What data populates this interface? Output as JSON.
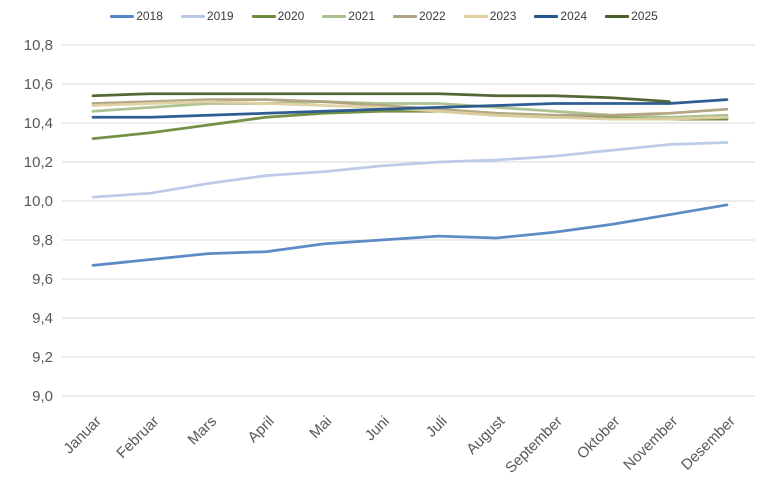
{
  "chart_data": {
    "type": "line",
    "title": "",
    "xlabel": "",
    "ylabel": "",
    "categories": [
      "Januar",
      "Februar",
      "Mars",
      "April",
      "Mai",
      "Juni",
      "Juli",
      "August",
      "September",
      "Oktober",
      "November",
      "Desember"
    ],
    "ylim": [
      9.0,
      10.8
    ],
    "ytick_step": 0.2,
    "ytick_labels": [
      "10,8",
      "10,6",
      "10,4",
      "10,2",
      "10,0",
      "9,8",
      "9,6",
      "9,4",
      "9,2",
      "9,0"
    ],
    "decimal_separator": ",",
    "grid": true,
    "legend_position": "top",
    "axis_text_color": "#595959",
    "gridline_color": "#d9d9d9",
    "background_color": "#ffffff",
    "series": [
      {
        "name": "2018",
        "color": "#5585C2",
        "values": [
          9.67,
          9.7,
          9.73,
          9.74,
          9.78,
          9.8,
          9.82,
          9.81,
          9.84,
          9.88,
          9.93,
          9.98
        ]
      },
      {
        "name": "2019",
        "color": "#B9C7E8",
        "values": [
          10.02,
          10.04,
          10.09,
          10.13,
          10.15,
          10.18,
          10.2,
          10.21,
          10.23,
          10.26,
          10.29,
          10.3
        ]
      },
      {
        "name": "2020",
        "color": "#6D8B3C",
        "values": [
          10.32,
          10.35,
          10.39,
          10.43,
          10.45,
          10.46,
          10.46,
          10.44,
          10.43,
          10.43,
          10.42,
          10.42
        ]
      },
      {
        "name": "2021",
        "color": "#A9C08C",
        "values": [
          10.46,
          10.48,
          10.5,
          10.5,
          10.51,
          10.5,
          10.5,
          10.48,
          10.46,
          10.44,
          10.43,
          10.44
        ]
      },
      {
        "name": "2022",
        "color": "#AFA27F",
        "values": [
          10.5,
          10.51,
          10.52,
          10.52,
          10.51,
          10.49,
          10.47,
          10.45,
          10.44,
          10.44,
          10.45,
          10.47
        ]
      },
      {
        "name": "2023",
        "color": "#E0D0A2",
        "values": [
          10.49,
          10.5,
          10.51,
          10.5,
          10.49,
          10.48,
          10.46,
          10.44,
          10.43,
          10.42,
          10.42,
          10.43
        ]
      },
      {
        "name": "2024",
        "color": "#24548C",
        "values": [
          10.43,
          10.43,
          10.44,
          10.45,
          10.46,
          10.47,
          10.48,
          10.49,
          10.5,
          10.5,
          10.5,
          10.52
        ]
      },
      {
        "name": "2025",
        "color": "#4C5F2B",
        "values": [
          10.54,
          10.55,
          10.55,
          10.55,
          10.55,
          10.55,
          10.55,
          10.54,
          10.54,
          10.53,
          10.51
        ]
      }
    ]
  }
}
